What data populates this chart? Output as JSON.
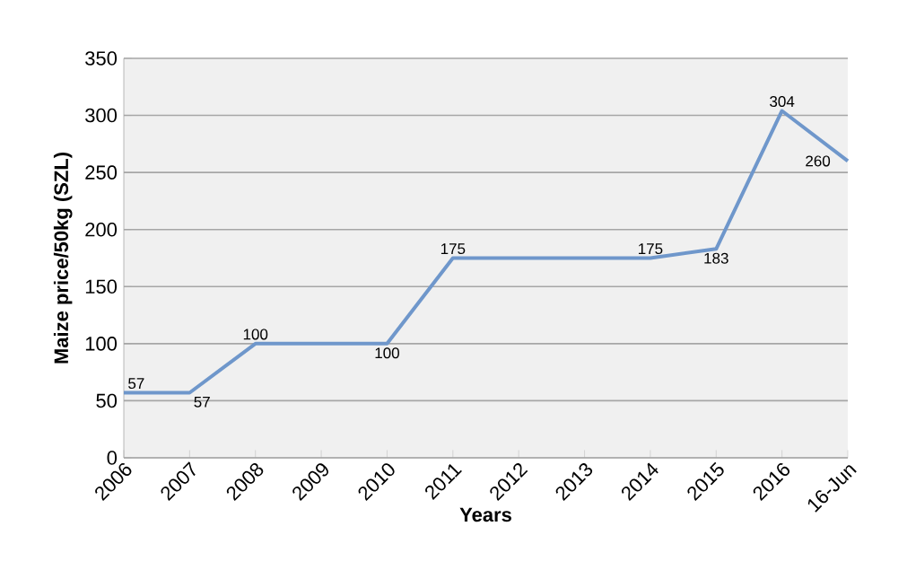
{
  "chart_data": {
    "type": "line",
    "xlabel": "Years",
    "ylabel": "Maize  price/50kg (SZL)",
    "categories": [
      "2006",
      "2007",
      "2008",
      "2009",
      "2010",
      "2011",
      "2012",
      "2013",
      "2014",
      "2015",
      "2016",
      "16-Jun"
    ],
    "values": [
      57,
      57,
      100,
      100,
      100,
      175,
      175,
      175,
      175,
      183,
      304,
      260
    ],
    "value_labels": [
      "57",
      "57",
      "100",
      null,
      "100",
      "175",
      null,
      null,
      "175",
      "183",
      "304",
      "260"
    ],
    "color": "#6f97cb",
    "ylim": [
      0,
      350
    ],
    "yticks": [
      0,
      50,
      100,
      150,
      200,
      250,
      300,
      350
    ],
    "grid": "y",
    "marker": "none"
  }
}
